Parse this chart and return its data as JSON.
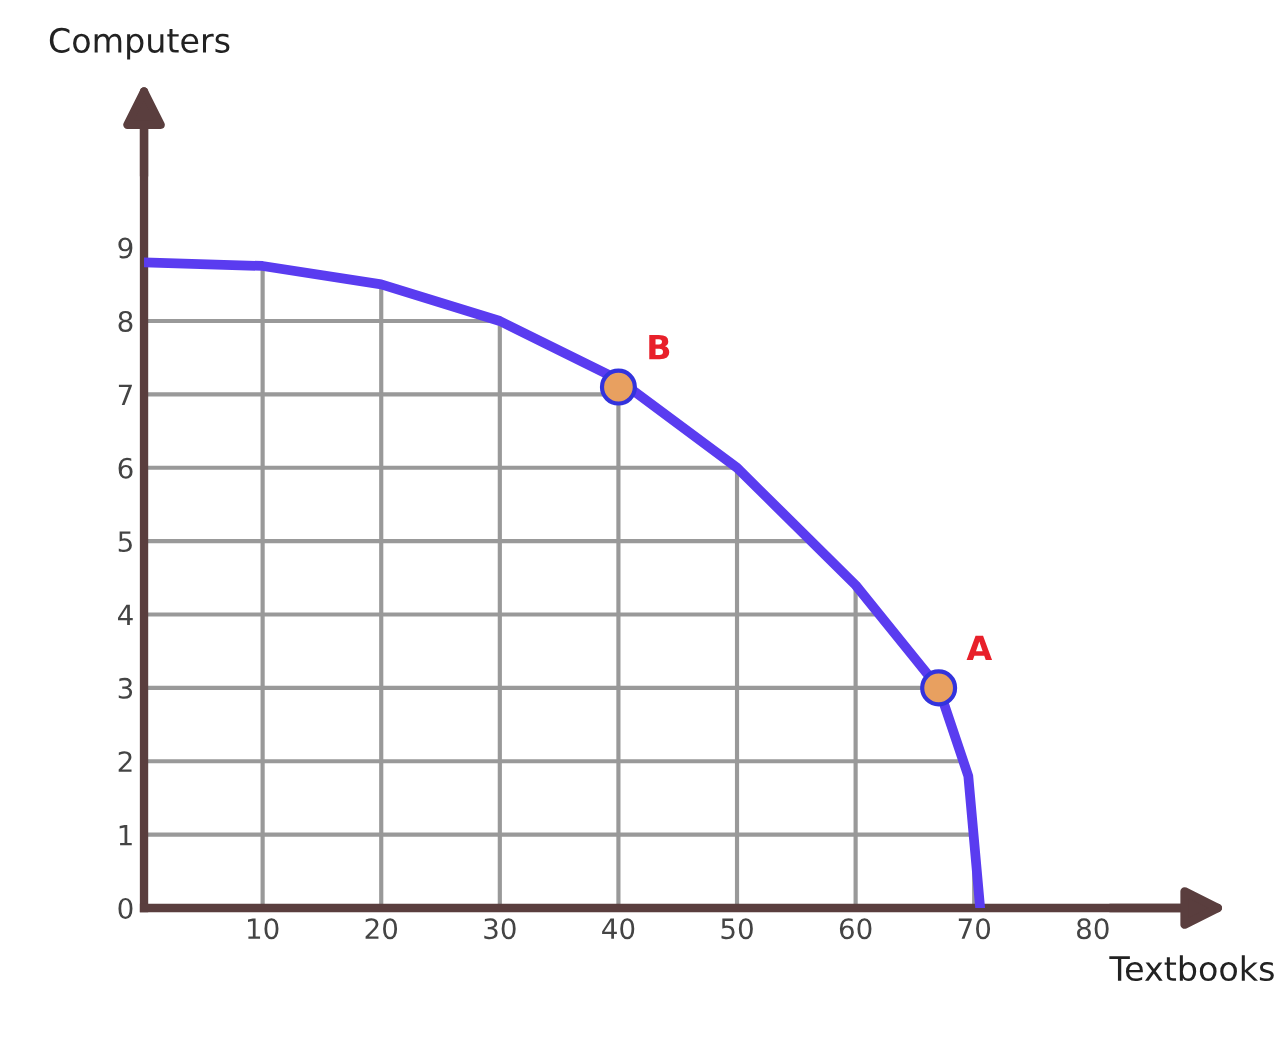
{
  "chart_data": {
    "type": "line",
    "xlabel": "Textbooks",
    "ylabel": "Computers",
    "xlim": [
      0,
      90
    ],
    "ylim": [
      0,
      11
    ],
    "xticks": [
      10,
      20,
      30,
      40,
      50,
      60,
      70,
      80
    ],
    "yticks": [
      0,
      1,
      2,
      3,
      4,
      5,
      6,
      7,
      8,
      9
    ],
    "grid": true,
    "series": [
      {
        "color": "#5a3cf0",
        "marker": "none",
        "x": [
          0,
          10,
          20,
          30,
          40,
          50,
          60,
          65,
          67,
          69.5,
          70.5
        ],
        "values": [
          8.8,
          8.75,
          8.5,
          8.0,
          7.2,
          6.0,
          4.4,
          3.4,
          3.0,
          1.8,
          0
        ]
      },
      {
        "type": "scatter",
        "color": "#e8a060",
        "marker": "circle",
        "x": [
          40,
          67
        ],
        "values": [
          7.1,
          3.0
        ]
      }
    ],
    "annotations": [
      {
        "text": "B",
        "x": 40,
        "y": 7.1
      },
      {
        "text": "A",
        "x": 67,
        "y": 3.0
      }
    ]
  }
}
